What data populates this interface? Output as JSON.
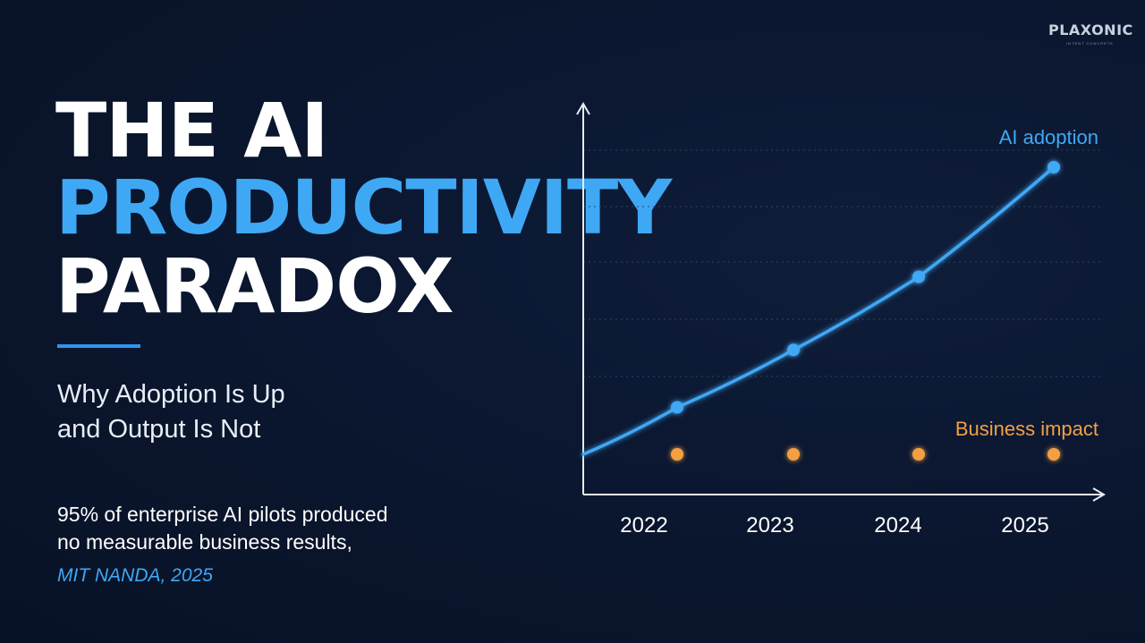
{
  "title": {
    "line1": "THE AI",
    "line2": "PRODUCTIVITY",
    "line3": "PARADOX"
  },
  "subtitle": {
    "line1": "Why Adoption Is Up",
    "line2": "and Output Is Not"
  },
  "stat": {
    "line1": "95% of enterprise AI pilots produced",
    "line2": "no measurable business results,"
  },
  "source": "MIT NANDA, 2025",
  "logo": {
    "name": "PLAXONIC",
    "tagline": "INTENT CONCRETE"
  },
  "colors": {
    "accent_blue": "#3fa8f5",
    "accent_orange": "#f4a043",
    "background": "#0b1730"
  },
  "chart_data": {
    "type": "line",
    "x": [
      "2022",
      "2023",
      "2024",
      "2025"
    ],
    "series": [
      {
        "name": "AI adoption",
        "values": [
          0.18,
          0.4,
          0.68,
          1.1
        ],
        "color": "#3fa8f5"
      },
      {
        "name": "Business impact",
        "values": [
          0.0,
          0.0,
          0.0,
          0.0
        ],
        "color": "#f4a043"
      }
    ],
    "baseline": 0,
    "ylim": [
      -0.15,
      1.35
    ],
    "xlabel": "",
    "ylabel": "",
    "grid": true,
    "y_tick_labels": false
  }
}
